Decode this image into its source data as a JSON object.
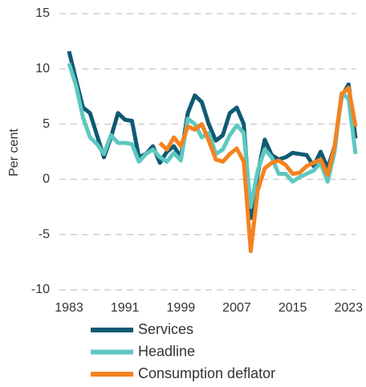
{
  "chart_data": {
    "type": "line",
    "y_label": "Per cent",
    "x": [
      1983,
      1984,
      1985,
      1986,
      1987,
      1988,
      1989,
      1990,
      1991,
      1992,
      1993,
      1994,
      1995,
      1996,
      1997,
      1998,
      1999,
      2000,
      2001,
      2002,
      2003,
      2004,
      2005,
      2006,
      2007,
      2008,
      2009,
      2010,
      2011,
      2012,
      2013,
      2014,
      2015,
      2016,
      2017,
      2018,
      2019,
      2020,
      2021,
      2022,
      2023,
      2024
    ],
    "series": [
      {
        "name": "Services",
        "color": "#0f5a73",
        "values": [
          11.6,
          9,
          6.5,
          6,
          4,
          2,
          3.8,
          6,
          5.4,
          5.3,
          2,
          2.3,
          3,
          1.5,
          2.5,
          3,
          2,
          6,
          7.6,
          7,
          5,
          3.5,
          4,
          6,
          6.5,
          5,
          -3.5,
          0.5,
          3.6,
          2.2,
          1.8,
          2,
          2.4,
          2.3,
          2.2,
          1.2,
          2.5,
          1,
          3,
          7.5,
          8.6,
          3.7
        ]
      },
      {
        "name": "Headline",
        "color": "#5ec8bf",
        "values": [
          10.5,
          8.5,
          5.6,
          3.8,
          3.2,
          2.3,
          4,
          3.3,
          3.3,
          3.2,
          1.6,
          2.3,
          2.7,
          2,
          1.6,
          2.4,
          1.7,
          5.5,
          5,
          3.8,
          4.2,
          2.3,
          2.7,
          4,
          4.9,
          4.2,
          -2.5,
          0.8,
          2.7,
          2,
          0.5,
          0.5,
          -0.2,
          0.2,
          0.5,
          0.8,
          1.5,
          -0.2,
          2.5,
          7.8,
          7.3,
          2.3
        ]
      },
      {
        "name": "Consumption deflator",
        "color": "#f5821f",
        "values": [
          null,
          null,
          null,
          null,
          null,
          null,
          null,
          null,
          null,
          null,
          null,
          null,
          null,
          3.3,
          2.7,
          3.8,
          3,
          4.8,
          4.5,
          5,
          3.5,
          1.8,
          1.6,
          2.3,
          2.8,
          1.6,
          -6.5,
          -1,
          1,
          1.5,
          1.7,
          1.3,
          0.5,
          0.6,
          1.2,
          1.5,
          1.8,
          0.4,
          3,
          7.7,
          8.3,
          4.8
        ]
      }
    ],
    "xlim": [
      1983,
      2024
    ],
    "xticks": [
      1983,
      1991,
      1999,
      2007,
      2015,
      2023
    ],
    "ylim": [
      -10,
      15
    ],
    "yticks": [
      -10,
      -5,
      0,
      5,
      10,
      15
    ],
    "grid": true
  }
}
